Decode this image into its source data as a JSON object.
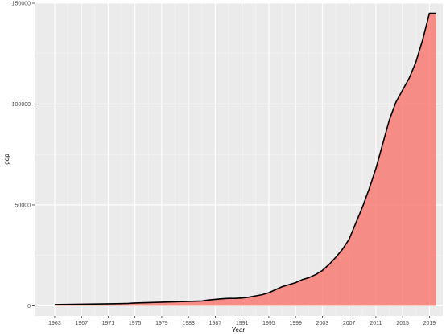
{
  "chart_data": {
    "type": "area",
    "title": "",
    "xlabel": "Year",
    "ylabel": "gdp",
    "xlim": [
      1960,
      2021
    ],
    "ylim": [
      -5000,
      150000
    ],
    "grid": true,
    "legend": "none",
    "x_ticks": [
      1963,
      1967,
      1971,
      1975,
      1979,
      1983,
      1987,
      1991,
      1995,
      1999,
      2003,
      2007,
      2011,
      2015,
      2019
    ],
    "y_ticks": [
      0,
      50000,
      100000,
      150000
    ],
    "y_tick_labels": [
      "0",
      "50000",
      "100000",
      "150000"
    ],
    "series": [
      {
        "x": [
          1963,
          1964,
          1965,
          1966,
          1967,
          1968,
          1969,
          1970,
          1971,
          1972,
          1973,
          1974,
          1975,
          1976,
          1977,
          1978,
          1979,
          1980,
          1981,
          1982,
          1983,
          1984,
          1985,
          1986,
          1987,
          1988,
          1989,
          1990,
          1991,
          1992,
          1993,
          1994,
          1995,
          1996,
          1997,
          1998,
          1999,
          2000,
          2001,
          2002,
          2003,
          2004,
          2005,
          2006,
          2007,
          2008,
          2009,
          2010,
          2011,
          2012,
          2013,
          2014,
          2015,
          2016,
          2017,
          2018,
          2019,
          2020
        ],
        "values": [
          600,
          650,
          700,
          750,
          800,
          850,
          900,
          950,
          1000,
          1050,
          1100,
          1200,
          1400,
          1500,
          1600,
          1700,
          1800,
          1900,
          2000,
          2100,
          2200,
          2300,
          2400,
          2900,
          3200,
          3500,
          3700,
          3700,
          3900,
          4300,
          4900,
          5500,
          6500,
          8000,
          9500,
          10500,
          11500,
          13000,
          14000,
          15500,
          17500,
          20500,
          24000,
          28000,
          33000,
          41000,
          49000,
          58000,
          68000,
          80000,
          92000,
          101000,
          107000,
          113000,
          121000,
          132000,
          145000,
          145000
        ]
      }
    ],
    "colors": {
      "area_fill": "#F8766D",
      "line": "#000000",
      "panel_background": "#EBEBEB",
      "grid_major": "#FFFFFF",
      "grid_minor": "#F5F5F5",
      "tick_text": "#4D4D4D",
      "tick_mark": "#333333"
    }
  }
}
